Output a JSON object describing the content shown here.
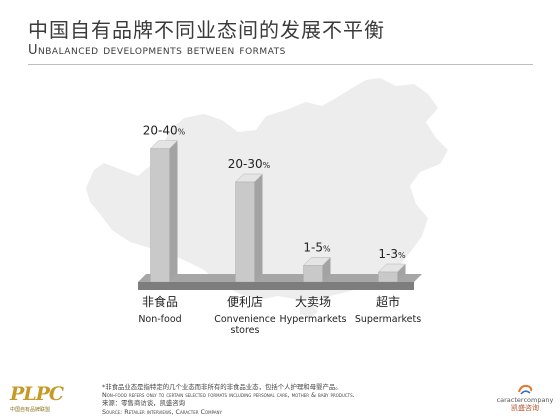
{
  "header": {
    "title_cn": "中国自有品牌不同业态间的发展不平衡",
    "title_en": "Unbalanced developments between formats"
  },
  "chart_data": {
    "type": "bar",
    "categories": [
      {
        "label_cn": "非食品",
        "label_en": [
          "Non-food"
        ]
      },
      {
        "label_cn": "便利店",
        "label_en": [
          "Convenience",
          "stores"
        ]
      },
      {
        "label_cn": "大卖场",
        "label_en": [
          "Hypermarkets"
        ]
      },
      {
        "label_cn": "超市",
        "label_en": [
          "Supermarkets"
        ]
      }
    ],
    "values": [
      {
        "low": 20,
        "high": 40,
        "label": "20-40",
        "unit": "%"
      },
      {
        "low": 20,
        "high": 30,
        "label": "20-30",
        "unit": "%"
      },
      {
        "low": 1,
        "high": 5,
        "label": "1-5",
        "unit": "%"
      },
      {
        "low": 1,
        "high": 3,
        "label": "1-3",
        "unit": "%"
      }
    ],
    "ylim": [
      0,
      45
    ],
    "grid": false,
    "colors": {
      "bar_front": "#c9c9c9",
      "bar_side": "#a3a3a3",
      "bar_top": "#e4e4e4",
      "base": "#7d7d7d",
      "map": "#ededed"
    }
  },
  "footnote": {
    "line1_cn": "*非食品业态是指特定的几个业态而非所有的非食品业态，包括个人护理和母婴产品。",
    "line2_en": "Non-food refers only to certain selected formats including personal care, mother & baby products.",
    "line3_cn": "来源：零售商访谈，凯盛咨询",
    "line4_en": "Source: Retailer interviews, Caracter Company"
  },
  "logos": {
    "left_mark": "PLPC",
    "left_sub": "中国自有品牌联盟",
    "right_en": "caractercompany",
    "right_cn": "凯盛咨询"
  }
}
